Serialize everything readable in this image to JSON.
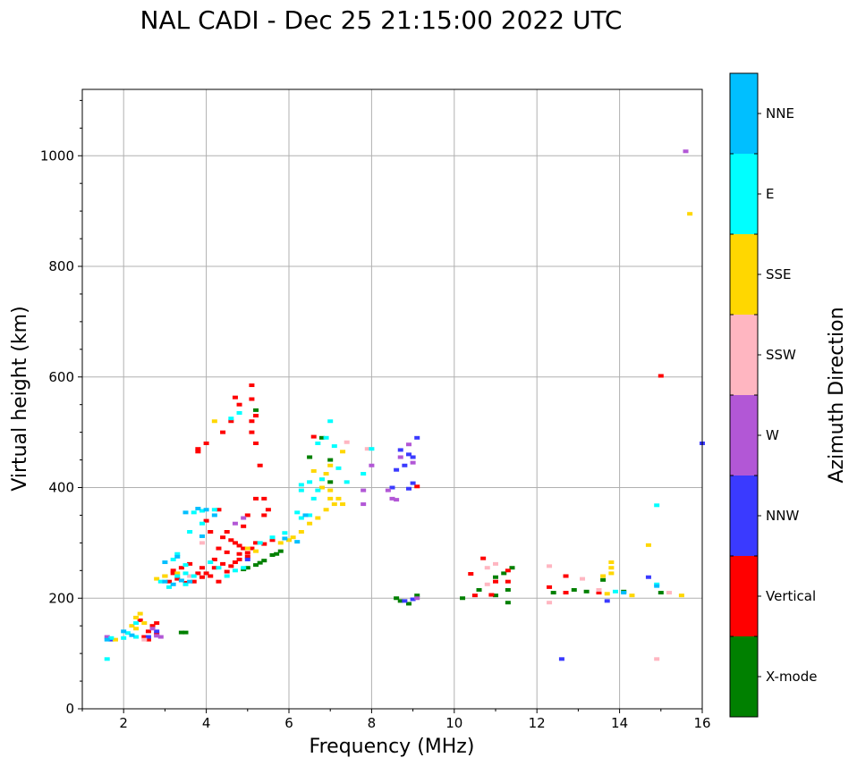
{
  "chart_data": {
    "type": "scatter",
    "title": "NAL CADI - Dec 25 21:15:00 2022 UTC",
    "xlabel": "Frequency (MHz)",
    "ylabel": "Virtual height (km)",
    "xlim": [
      1,
      16
    ],
    "ylim": [
      0,
      1120
    ],
    "xticks": [
      2,
      4,
      6,
      8,
      10,
      12,
      14,
      16
    ],
    "yticks": [
      0,
      200,
      400,
      600,
      800,
      1000
    ],
    "xtick_labels": [
      "2",
      "4",
      "6",
      "8",
      "10",
      "12",
      "14",
      "16"
    ],
    "ytick_labels": [
      "0",
      "200",
      "400",
      "600",
      "800",
      "1000"
    ],
    "grid": true,
    "colorbar": {
      "title": "Azimuth Direction",
      "categories": [
        {
          "label": "X-mode",
          "color": "#008000"
        },
        {
          "label": "Vertical",
          "color": "#ff0000"
        },
        {
          "label": "NNW",
          "color": "#3a3aff"
        },
        {
          "label": "W",
          "color": "#b257d6"
        },
        {
          "label": "SSW",
          "color": "#ffb6c1"
        },
        {
          "label": "SSE",
          "color": "#ffd700"
        },
        {
          "label": "E",
          "color": "#00ffff"
        },
        {
          "label": "NNE",
          "color": "#00bfff"
        }
      ]
    },
    "series": [
      {
        "name": "X-mode",
        "points": [
          [
            3.4,
            138
          ],
          [
            3.5,
            138
          ],
          [
            5.0,
            255
          ],
          [
            5.2,
            260
          ],
          [
            5.4,
            268
          ],
          [
            5.6,
            278
          ],
          [
            5.8,
            285
          ],
          [
            5.3,
            264
          ],
          [
            4.9,
            252
          ],
          [
            5.7,
            280
          ],
          [
            8.7,
            195
          ],
          [
            8.9,
            190
          ],
          [
            9.1,
            205
          ],
          [
            10.2,
            200
          ],
          [
            10.6,
            215
          ],
          [
            11.0,
            205
          ],
          [
            11.3,
            192
          ],
          [
            11.3,
            215
          ],
          [
            11.2,
            245
          ],
          [
            11.4,
            255
          ],
          [
            12.4,
            210
          ],
          [
            12.9,
            215
          ],
          [
            13.2,
            212
          ],
          [
            14.1,
            212
          ],
          [
            15.0,
            210
          ],
          [
            6.8,
            490
          ],
          [
            7.0,
            450
          ],
          [
            5.2,
            540
          ],
          [
            6.5,
            455
          ],
          [
            7.0,
            410
          ],
          [
            13.6,
            233
          ],
          [
            11.0,
            238
          ],
          [
            8.6,
            200
          ]
        ]
      },
      {
        "name": "Vertical",
        "points": [
          [
            2.5,
            130
          ],
          [
            2.6,
            140
          ],
          [
            2.7,
            150
          ],
          [
            2.8,
            135
          ],
          [
            2.4,
            160
          ],
          [
            2.6,
            125
          ],
          [
            2.8,
            155
          ],
          [
            3.1,
            230
          ],
          [
            3.3,
            235
          ],
          [
            3.5,
            228
          ],
          [
            3.7,
            230
          ],
          [
            3.9,
            238
          ],
          [
            4.0,
            245
          ],
          [
            4.1,
            240
          ],
          [
            4.2,
            255
          ],
          [
            4.4,
            262
          ],
          [
            4.6,
            258
          ],
          [
            4.8,
            270
          ],
          [
            5.0,
            275
          ],
          [
            5.1,
            290
          ],
          [
            5.2,
            300
          ],
          [
            5.4,
            298
          ],
          [
            5.6,
            305
          ],
          [
            4.0,
            340
          ],
          [
            4.3,
            360
          ],
          [
            4.1,
            320
          ],
          [
            4.4,
            310
          ],
          [
            4.6,
            305
          ],
          [
            4.8,
            295
          ],
          [
            5.0,
            282
          ],
          [
            3.6,
            262
          ],
          [
            3.4,
            255
          ],
          [
            3.2,
            250
          ],
          [
            3.0,
            240
          ],
          [
            5.2,
            380
          ],
          [
            5.0,
            350
          ],
          [
            4.9,
            330
          ],
          [
            4.7,
            300
          ],
          [
            4.5,
            320
          ],
          [
            4.3,
            290
          ],
          [
            4.2,
            270
          ],
          [
            4.3,
            230
          ],
          [
            4.5,
            248
          ],
          [
            3.9,
            255
          ],
          [
            4.7,
            265
          ],
          [
            4.5,
            283
          ],
          [
            4.8,
            280
          ],
          [
            3.8,
            245
          ],
          [
            3.2,
            245
          ],
          [
            3.8,
            470
          ],
          [
            3.8,
            465
          ],
          [
            4.0,
            480
          ],
          [
            4.4,
            500
          ],
          [
            4.6,
            520
          ],
          [
            4.8,
            550
          ],
          [
            5.1,
            560
          ],
          [
            5.2,
            530
          ],
          [
            5.1,
            520
          ],
          [
            5.1,
            500
          ],
          [
            5.2,
            480
          ],
          [
            5.3,
            440
          ],
          [
            5.4,
            380
          ],
          [
            5.5,
            360
          ],
          [
            5.4,
            350
          ],
          [
            4.7,
            563
          ],
          [
            5.1,
            585
          ],
          [
            4.9,
            290
          ],
          [
            6.6,
            492
          ],
          [
            9.1,
            402
          ],
          [
            10.4,
            244
          ],
          [
            10.7,
            272
          ],
          [
            10.9,
            206
          ],
          [
            11.0,
            230
          ],
          [
            11.3,
            230
          ],
          [
            11.3,
            250
          ],
          [
            10.5,
            205
          ],
          [
            12.3,
            220
          ],
          [
            12.7,
            240
          ],
          [
            12.7,
            210
          ],
          [
            13.5,
            210
          ],
          [
            15.0,
            602
          ]
        ]
      },
      {
        "name": "NNW",
        "points": [
          [
            1.7,
            125
          ],
          [
            9.1,
            490
          ],
          [
            8.9,
            460
          ],
          [
            9.0,
            455
          ],
          [
            8.8,
            440
          ],
          [
            8.6,
            432
          ],
          [
            8.7,
            468
          ],
          [
            9.0,
            408
          ],
          [
            8.5,
            400
          ],
          [
            8.9,
            398
          ],
          [
            8.8,
            195
          ],
          [
            9.0,
            198
          ],
          [
            12.6,
            90
          ],
          [
            13.7,
            195
          ],
          [
            14.7,
            238
          ],
          [
            16.0,
            480
          ],
          [
            2.6,
            130
          ],
          [
            2.8,
            140
          ],
          [
            5.0,
            270
          ]
        ]
      },
      {
        "name": "W",
        "points": [
          [
            2.9,
            130
          ],
          [
            2.7,
            145
          ],
          [
            2.8,
            132
          ],
          [
            1.6,
            130
          ],
          [
            4.9,
            345
          ],
          [
            4.7,
            335
          ],
          [
            8.0,
            440
          ],
          [
            8.4,
            395
          ],
          [
            8.5,
            380
          ],
          [
            8.6,
            378
          ],
          [
            7.8,
            370
          ],
          [
            7.8,
            395
          ],
          [
            8.9,
            478
          ],
          [
            8.7,
            455
          ],
          [
            9.0,
            445
          ],
          [
            15.6,
            1008
          ],
          [
            9.1,
            200
          ]
        ]
      },
      {
        "name": "SSW",
        "points": [
          [
            3.6,
            240
          ],
          [
            3.9,
            300
          ],
          [
            11.0,
            262
          ],
          [
            10.8,
            255
          ],
          [
            12.3,
            258
          ],
          [
            12.3,
            192
          ],
          [
            13.1,
            235
          ],
          [
            13.5,
            215
          ],
          [
            14.9,
            90
          ],
          [
            15.2,
            210
          ],
          [
            7.4,
            482
          ],
          [
            2.5,
            125
          ],
          [
            7.9,
            470
          ],
          [
            10.8,
            225
          ]
        ]
      },
      {
        "name": "SSE",
        "points": [
          [
            2.4,
            172
          ],
          [
            2.3,
            165
          ],
          [
            2.3,
            145
          ],
          [
            2.2,
            150
          ],
          [
            2.5,
            155
          ],
          [
            1.8,
            125
          ],
          [
            2.8,
            235
          ],
          [
            3.0,
            240
          ],
          [
            3.3,
            245
          ],
          [
            4.2,
            520
          ],
          [
            5.0,
            290
          ],
          [
            5.2,
            285
          ],
          [
            5.8,
            300
          ],
          [
            6.0,
            305
          ],
          [
            6.1,
            310
          ],
          [
            6.3,
            320
          ],
          [
            6.5,
            335
          ],
          [
            6.7,
            345
          ],
          [
            6.9,
            360
          ],
          [
            7.1,
            370
          ],
          [
            7.2,
            380
          ],
          [
            7.3,
            370
          ],
          [
            7.0,
            380
          ],
          [
            7.0,
            395
          ],
          [
            7.3,
            465
          ],
          [
            7.0,
            440
          ],
          [
            6.9,
            425
          ],
          [
            6.8,
            415
          ],
          [
            6.6,
            430
          ],
          [
            6.8,
            400
          ],
          [
            13.8,
            265
          ],
          [
            13.8,
            255
          ],
          [
            13.8,
            245
          ],
          [
            13.6,
            240
          ],
          [
            14.7,
            296
          ],
          [
            14.3,
            205
          ],
          [
            15.5,
            205
          ],
          [
            15.7,
            895
          ],
          [
            13.7,
            208
          ]
        ]
      },
      {
        "name": "E",
        "points": [
          [
            1.6,
            90
          ],
          [
            1.7,
            128
          ],
          [
            2.0,
            128
          ],
          [
            2.1,
            137
          ],
          [
            2.3,
            130
          ],
          [
            2.9,
            230
          ],
          [
            3.1,
            220
          ],
          [
            3.3,
            240
          ],
          [
            3.5,
            245
          ],
          [
            3.7,
            240
          ],
          [
            3.5,
            225
          ],
          [
            3.2,
            270
          ],
          [
            3.5,
            260
          ],
          [
            3.3,
            280
          ],
          [
            3.6,
            320
          ],
          [
            3.9,
            335
          ],
          [
            3.7,
            355
          ],
          [
            3.9,
            358
          ],
          [
            4.2,
            360
          ],
          [
            4.5,
            240
          ],
          [
            4.7,
            250
          ],
          [
            4.9,
            255
          ],
          [
            4.6,
            525
          ],
          [
            4.8,
            535
          ],
          [
            5.3,
            300
          ],
          [
            5.6,
            310
          ],
          [
            5.9,
            318
          ],
          [
            6.2,
            355
          ],
          [
            6.3,
            345
          ],
          [
            6.5,
            350
          ],
          [
            6.6,
            380
          ],
          [
            6.7,
            395
          ],
          [
            6.7,
            480
          ],
          [
            6.9,
            490
          ],
          [
            7.1,
            475
          ],
          [
            7.0,
            520
          ],
          [
            6.5,
            410
          ],
          [
            6.3,
            395
          ],
          [
            6.3,
            405
          ],
          [
            7.2,
            435
          ],
          [
            7.4,
            410
          ],
          [
            7.8,
            425
          ],
          [
            8.0,
            470
          ],
          [
            6.8,
            415
          ],
          [
            14.9,
            368
          ],
          [
            13.9,
            212
          ],
          [
            14.9,
            225
          ],
          [
            4.1,
            265
          ],
          [
            4.3,
            255
          ],
          [
            2.3,
            155
          ]
        ]
      },
      {
        "name": "NNE",
        "points": [
          [
            1.6,
            125
          ],
          [
            2.0,
            140
          ],
          [
            3.0,
            230
          ],
          [
            3.2,
            225
          ],
          [
            3.4,
            232
          ],
          [
            3.6,
            230
          ],
          [
            3.5,
            355
          ],
          [
            3.8,
            362
          ],
          [
            4.2,
            350
          ],
          [
            4.0,
            360
          ],
          [
            3.3,
            275
          ],
          [
            3.0,
            265
          ],
          [
            6.2,
            302
          ],
          [
            6.4,
            350
          ],
          [
            5.9,
            308
          ],
          [
            14.1,
            210
          ],
          [
            14.9,
            222
          ],
          [
            2.2,
            133
          ],
          [
            3.9,
            312
          ]
        ]
      }
    ]
  }
}
